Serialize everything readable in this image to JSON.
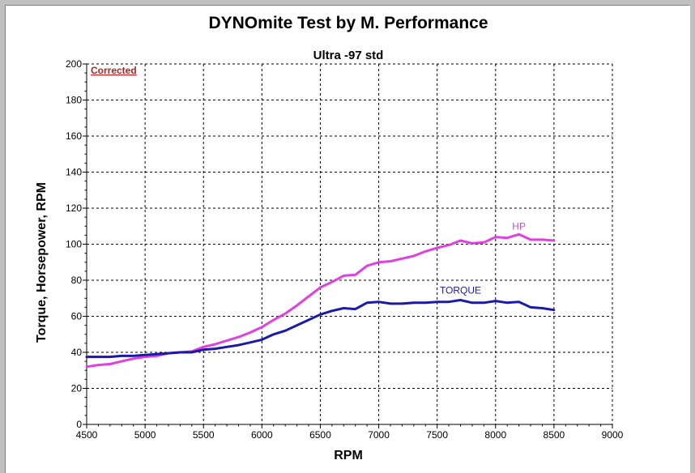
{
  "chart_data": {
    "type": "line",
    "title": "DYNOmite Test by M. Performance",
    "subtitle": "Ultra -97 std",
    "annotation": "Corrected",
    "xlabel": "RPM",
    "ylabel": "Torque, Horsepower, RPM",
    "xlim": [
      4500,
      9000
    ],
    "ylim": [
      0,
      200
    ],
    "xticks": [
      4500,
      5000,
      5500,
      6000,
      6500,
      7000,
      7500,
      8000,
      8500,
      9000
    ],
    "yticks": [
      0,
      20,
      40,
      60,
      80,
      100,
      120,
      140,
      160,
      180,
      200
    ],
    "grid": true,
    "series": [
      {
        "name": "HP",
        "color": "#e040e0",
        "x": [
          4500,
          4600,
          4700,
          4800,
          4900,
          5000,
          5100,
          5200,
          5300,
          5400,
          5500,
          5600,
          5700,
          5800,
          5900,
          6000,
          6100,
          6200,
          6300,
          6400,
          6500,
          6600,
          6700,
          6800,
          6900,
          7000,
          7100,
          7200,
          7300,
          7400,
          7500,
          7600,
          7700,
          7800,
          7900,
          8000,
          8100,
          8200,
          8300,
          8400,
          8500
        ],
        "values": [
          32,
          33,
          33.5,
          35,
          36.5,
          37.5,
          38,
          39.5,
          40,
          40.5,
          43,
          44.5,
          46.5,
          48.5,
          51,
          54,
          58,
          61.5,
          66,
          71,
          76,
          79,
          82.5,
          83,
          88,
          90,
          90.5,
          92,
          93.5,
          96,
          98,
          99.5,
          102,
          100.5,
          101,
          104,
          103.5,
          105.5,
          102.5,
          102.5,
          102
        ]
      },
      {
        "name": "TORQUE",
        "color": "#1a1aaa",
        "x": [
          4500,
          4600,
          4700,
          4800,
          4900,
          5000,
          5100,
          5200,
          5300,
          5400,
          5500,
          5600,
          5700,
          5800,
          5900,
          6000,
          6100,
          6200,
          6300,
          6400,
          6500,
          6600,
          6700,
          6800,
          6900,
          7000,
          7100,
          7200,
          7300,
          7400,
          7500,
          7600,
          7700,
          7800,
          7900,
          8000,
          8100,
          8200,
          8300,
          8400,
          8500
        ],
        "values": [
          37.5,
          37.5,
          37.5,
          38,
          38,
          38.5,
          39,
          39.5,
          40,
          40,
          41.5,
          42,
          43,
          44,
          45.5,
          47,
          50,
          52,
          55,
          58,
          61,
          63,
          64.5,
          64,
          67.5,
          68,
          67,
          67,
          67.5,
          67.5,
          68,
          68,
          69,
          67.5,
          67.5,
          68.5,
          67.5,
          68,
          65,
          64.5,
          63.5
        ]
      }
    ]
  }
}
